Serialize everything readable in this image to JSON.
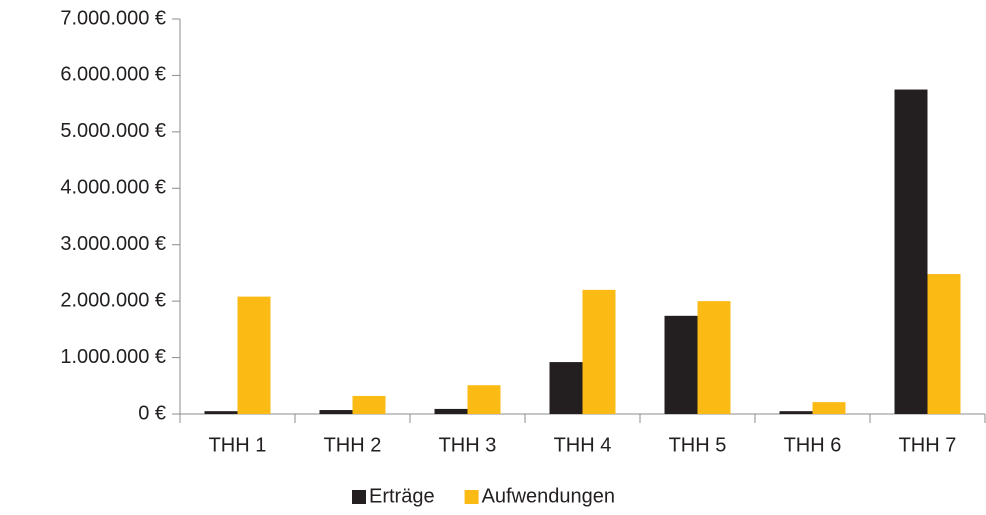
{
  "chart_data": {
    "type": "bar",
    "categories": [
      "THH 1",
      "THH 2",
      "THH 3",
      "THH 4",
      "THH 5",
      "THH 6",
      "THH 7"
    ],
    "series": [
      {
        "name": "Erträge",
        "color": "#231f20",
        "values": [
          50000,
          70000,
          90000,
          920000,
          1740000,
          50000,
          5750000
        ]
      },
      {
        "name": "Aufwendungen",
        "color": "#fbba14",
        "values": [
          2080000,
          320000,
          510000,
          2200000,
          2000000,
          210000,
          2480000
        ]
      }
    ],
    "ylim": [
      0,
      7000000
    ],
    "yticks": [
      {
        "value": 0,
        "label": "0 €"
      },
      {
        "value": 1000000,
        "label": "1.000.000 €"
      },
      {
        "value": 2000000,
        "label": "2.000.000 €"
      },
      {
        "value": 3000000,
        "label": "3.000.000 €"
      },
      {
        "value": 4000000,
        "label": "4.000.000 €"
      },
      {
        "value": 5000000,
        "label": "5.000.000 €"
      },
      {
        "value": 6000000,
        "label": "6.000.000 €"
      },
      {
        "value": 7000000,
        "label": "7.000.000 €"
      }
    ],
    "grid": false,
    "legend": "bottom"
  }
}
